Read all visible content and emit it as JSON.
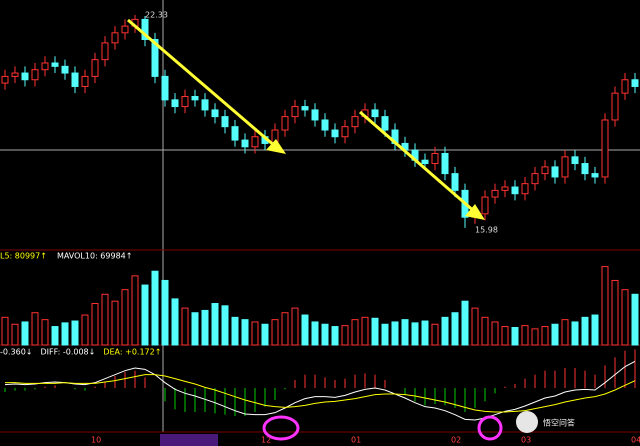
{
  "chart_data": {
    "type": "candlestick",
    "categories": [
      null,
      null,
      null,
      null,
      null,
      null,
      null,
      null,
      null,
      "10",
      null,
      null,
      null,
      null,
      null,
      null,
      "2017-11-01三",
      null,
      null,
      null,
      null,
      null,
      null,
      null,
      null,
      null,
      "12",
      null,
      null,
      null,
      null,
      null,
      null,
      null,
      null,
      "01",
      null,
      null,
      null,
      null,
      null,
      null,
      null,
      null,
      null,
      "02",
      null,
      null,
      null,
      null,
      null,
      null,
      "03",
      null,
      null,
      null,
      null,
      null,
      null,
      null,
      null,
      null,
      null,
      "04"
    ],
    "open": [
      20.3,
      20.5,
      20.6,
      20.4,
      20.7,
      20.9,
      20.8,
      20.6,
      20.2,
      20.5,
      21.0,
      21.5,
      21.8,
      22.0,
      22.2,
      21.6,
      20.5,
      19.8,
      19.6,
      19.9,
      19.8,
      19.5,
      19.3,
      19.0,
      18.6,
      18.4,
      18.7,
      18.5,
      18.9,
      19.3,
      19.6,
      19.5,
      19.2,
      18.9,
      18.7,
      19.0,
      19.3,
      19.5,
      19.3,
      18.9,
      18.5,
      18.3,
      18.0,
      17.9,
      18.2,
      17.6,
      17.1,
      16.3,
      16.4,
      16.9,
      17.1,
      17.2,
      17.0,
      17.3,
      17.6,
      17.8,
      17.5,
      18.1,
      17.9,
      17.6,
      17.5,
      19.2,
      20.0,
      20.4
    ],
    "close": [
      20.5,
      20.6,
      20.4,
      20.7,
      20.9,
      20.8,
      20.6,
      20.2,
      20.5,
      21.0,
      21.5,
      21.8,
      22.0,
      22.2,
      21.6,
      20.5,
      19.8,
      19.6,
      19.9,
      19.8,
      19.5,
      19.3,
      19.0,
      18.6,
      18.4,
      18.7,
      18.5,
      18.9,
      19.3,
      19.6,
      19.5,
      19.2,
      18.9,
      18.7,
      19.0,
      19.3,
      19.5,
      19.3,
      18.9,
      18.5,
      18.3,
      18.0,
      17.9,
      18.2,
      17.6,
      17.1,
      16.3,
      16.4,
      16.9,
      17.1,
      17.2,
      17.0,
      17.3,
      17.6,
      17.8,
      17.5,
      18.1,
      17.9,
      17.6,
      17.5,
      19.2,
      20.0,
      20.4,
      20.2
    ],
    "high": [
      20.7,
      20.8,
      20.8,
      20.9,
      21.1,
      21.1,
      21.0,
      20.8,
      20.7,
      21.2,
      21.7,
      22.0,
      22.2,
      22.33,
      22.3,
      21.8,
      20.7,
      20.0,
      20.1,
      20.1,
      20.0,
      19.7,
      19.5,
      19.2,
      18.8,
      18.9,
      18.9,
      19.1,
      19.5,
      19.8,
      19.8,
      19.7,
      19.4,
      19.1,
      19.2,
      19.5,
      19.7,
      19.7,
      19.5,
      19.1,
      18.7,
      18.5,
      18.2,
      18.4,
      18.4,
      17.8,
      17.3,
      16.6,
      17.1,
      17.3,
      17.4,
      17.4,
      17.5,
      17.8,
      18.0,
      18.0,
      18.3,
      18.3,
      18.1,
      17.8,
      19.4,
      20.2,
      20.6,
      20.6
    ],
    "low": [
      20.1,
      20.3,
      20.2,
      20.2,
      20.5,
      20.6,
      20.4,
      20.0,
      20.0,
      20.3,
      20.8,
      21.3,
      21.6,
      21.8,
      21.4,
      20.3,
      19.6,
      19.4,
      19.4,
      19.6,
      19.3,
      19.1,
      18.8,
      18.4,
      18.2,
      18.2,
      18.3,
      18.3,
      18.7,
      19.1,
      19.3,
      19.0,
      18.7,
      18.5,
      18.5,
      18.8,
      19.1,
      19.1,
      18.7,
      18.3,
      18.1,
      17.8,
      17.7,
      17.7,
      17.4,
      16.9,
      15.98,
      16.1,
      16.2,
      16.7,
      16.9,
      16.8,
      16.8,
      17.1,
      17.4,
      17.3,
      17.3,
      17.7,
      17.4,
      17.3,
      17.3,
      19.0,
      19.8,
      20.0
    ],
    "ylim": [
      15.5,
      22.6
    ],
    "volume": [
      60000,
      45000,
      50000,
      70000,
      55000,
      40000,
      48000,
      52000,
      65000,
      90000,
      110000,
      95000,
      120000,
      150000,
      130000,
      160000,
      140000,
      100000,
      80000,
      70000,
      75000,
      90000,
      85000,
      60000,
      55000,
      50000,
      45000,
      55000,
      70000,
      80000,
      65000,
      50000,
      45000,
      40000,
      42000,
      55000,
      60000,
      58000,
      45000,
      50000,
      55000,
      48000,
      52000,
      45000,
      60000,
      70000,
      95000,
      80000,
      60000,
      50000,
      40000,
      38000,
      42000,
      35000,
      40000,
      45000,
      55000,
      50000,
      60000,
      65000,
      170000,
      140000,
      120000,
      110000
    ],
    "volume_ylim": [
      0,
      180000
    ],
    "volume_legend": [
      "L5: 80997↑",
      "MAVOL10: 69984↑"
    ],
    "macd": [
      -0.06,
      -0.04,
      -0.04,
      -0.02,
      0.02,
      0.04,
      0.0,
      -0.02,
      -0.04,
      0.02,
      0.1,
      0.18,
      0.24,
      0.26,
      0.16,
      0.0,
      -0.2,
      -0.32,
      -0.36,
      -0.36,
      -0.36,
      -0.38,
      -0.4,
      -0.42,
      -0.42,
      -0.36,
      -0.28,
      -0.18,
      -0.02,
      0.12,
      0.2,
      0.2,
      0.16,
      0.12,
      0.14,
      0.2,
      0.22,
      0.2,
      0.12,
      0.0,
      -0.1,
      -0.2,
      -0.26,
      -0.24,
      -0.26,
      -0.3,
      -0.36,
      -0.3,
      -0.2,
      -0.08,
      0.02,
      0.06,
      0.14,
      0.2,
      0.26,
      0.26,
      0.3,
      0.3,
      0.26,
      0.2,
      0.34,
      0.46,
      0.56,
      0.58
    ],
    "diff": [
      0.05,
      0.06,
      0.05,
      0.06,
      0.08,
      0.09,
      0.08,
      0.06,
      0.05,
      0.08,
      0.14,
      0.2,
      0.26,
      0.3,
      0.28,
      0.2,
      0.08,
      -0.02,
      -0.08,
      -0.12,
      -0.17,
      -0.22,
      -0.28,
      -0.34,
      -0.39,
      -0.4,
      -0.4,
      -0.37,
      -0.3,
      -0.22,
      -0.16,
      -0.13,
      -0.13,
      -0.14,
      -0.11,
      -0.06,
      -0.02,
      0.0,
      -0.03,
      -0.09,
      -0.15,
      -0.22,
      -0.28,
      -0.3,
      -0.34,
      -0.4,
      -0.47,
      -0.48,
      -0.45,
      -0.4,
      -0.35,
      -0.32,
      -0.27,
      -0.21,
      -0.15,
      -0.12,
      -0.06,
      -0.03,
      -0.02,
      -0.03,
      0.08,
      0.2,
      0.32,
      0.4
    ],
    "dea": [
      0.08,
      0.08,
      0.07,
      0.07,
      0.07,
      0.07,
      0.08,
      0.07,
      0.07,
      0.07,
      0.09,
      0.11,
      0.14,
      0.17,
      0.2,
      0.2,
      0.18,
      0.14,
      0.1,
      0.06,
      0.01,
      -0.03,
      -0.08,
      -0.13,
      -0.18,
      -0.22,
      -0.26,
      -0.28,
      -0.29,
      -0.28,
      -0.26,
      -0.23,
      -0.21,
      -0.2,
      -0.18,
      -0.16,
      -0.13,
      -0.1,
      -0.09,
      -0.09,
      -0.1,
      -0.12,
      -0.15,
      -0.18,
      -0.21,
      -0.25,
      -0.29,
      -0.33,
      -0.35,
      -0.36,
      -0.36,
      -0.35,
      -0.34,
      -0.31,
      -0.28,
      -0.25,
      -0.21,
      -0.18,
      -0.15,
      -0.13,
      -0.09,
      -0.03,
      0.04,
      0.11
    ],
    "macd_ylim": [
      -0.6,
      0.6
    ],
    "macd_legend": [
      "-0.360↓",
      "DIFF: -0.008↓",
      "DEA: +0.172↑"
    ],
    "up_color": "#ff3232",
    "down_color": "#54fcfc",
    "diff_color": "#ffffff",
    "dea_color": "#ffff00",
    "watermark": "悟空问答"
  }
}
